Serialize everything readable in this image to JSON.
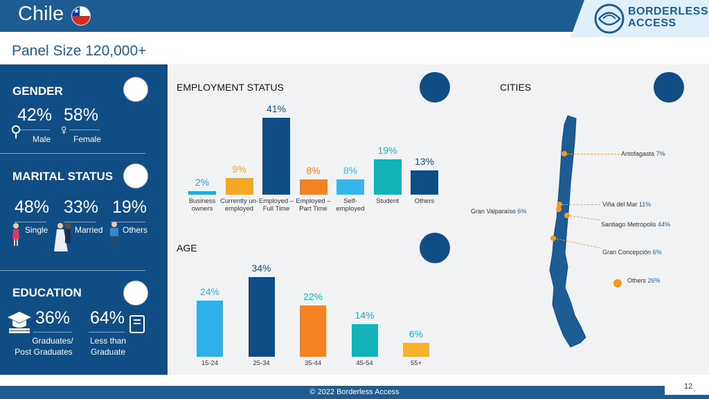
{
  "header": {
    "title": "Chile",
    "logo_line1": "BORDERLESS",
    "logo_line2": "ACCESS",
    "panel_size": "Panel Size 120,000+"
  },
  "gender": {
    "title": "GENDER",
    "items": [
      {
        "pct": "42%",
        "label": "Male"
      },
      {
        "pct": "58%",
        "label": "Female"
      }
    ]
  },
  "marital": {
    "title": "MARITAL STATUS",
    "items": [
      {
        "pct": "48%",
        "label": "Single"
      },
      {
        "pct": "33%",
        "label": "Married"
      },
      {
        "pct": "19%",
        "label": "Others"
      }
    ]
  },
  "education": {
    "title": "EDUCATION",
    "items": [
      {
        "pct": "36%",
        "label_line1": "Graduates/",
        "label_line2": "Post Graduates"
      },
      {
        "pct": "64%",
        "label_line1": "Less than",
        "label_line2": "Graduate"
      }
    ]
  },
  "employment": {
    "title": "EMPLOYMENT STATUS"
  },
  "age": {
    "title": "AGE"
  },
  "cities": {
    "title": "CITIES",
    "items": [
      {
        "name": "Antofagasta",
        "pct": "7%"
      },
      {
        "name": "Viña del Mar",
        "pct": "11%"
      },
      {
        "name": "Gran Valparaíso",
        "pct": "6%"
      },
      {
        "name": "Santiago Metropolis",
        "pct": "44%"
      },
      {
        "name": "Gran Concepción",
        "pct": "6%"
      },
      {
        "name": "Others",
        "pct": "26%"
      }
    ]
  },
  "chart_data": [
    {
      "type": "bar",
      "title": "EMPLOYMENT STATUS",
      "categories": [
        "Business owners",
        "Currently un-employed",
        "Employed – Full Time",
        "Employed – Part Time",
        "Self-employed",
        "Student",
        "Others"
      ],
      "values": [
        2,
        9,
        41,
        8,
        8,
        19,
        13
      ],
      "labels": [
        "2%",
        "9%",
        "41%",
        "8%",
        "8%",
        "19%",
        "13%"
      ],
      "colors": [
        "#22aad9",
        "#f5a623",
        "#0f4d84",
        "#f58220",
        "#35b6ea",
        "#12b3b8",
        "#0f4d84"
      ],
      "label_colors": [
        "#22aad9",
        "#f5a623",
        "#0f4d84",
        "#f58220",
        "#35b6ea",
        "#12b3b8",
        "#0f4d84"
      ]
    },
    {
      "type": "bar",
      "title": "AGE",
      "categories": [
        "15-24",
        "25-34",
        "35-44",
        "45-54",
        "55+"
      ],
      "values": [
        24,
        34,
        22,
        14,
        6
      ],
      "labels": [
        "24%",
        "34%",
        "22%",
        "14%",
        "6%"
      ],
      "colors": [
        "#2eb1e8",
        "#0f4d84",
        "#f58220",
        "#12b3b8",
        "#f7b12a"
      ],
      "label_colors": [
        "#2eb1e8",
        "#0f4d84",
        "#12b3b8",
        "#12b3b8",
        "#12b3b8"
      ]
    }
  ],
  "footer": {
    "copyright": "© 2022 Borderless Access",
    "page": "12"
  },
  "colors": {
    "brand_blue": "#1d5d93",
    "panel_blue": "#0f4d84",
    "accent_orange": "#f29a1f"
  }
}
